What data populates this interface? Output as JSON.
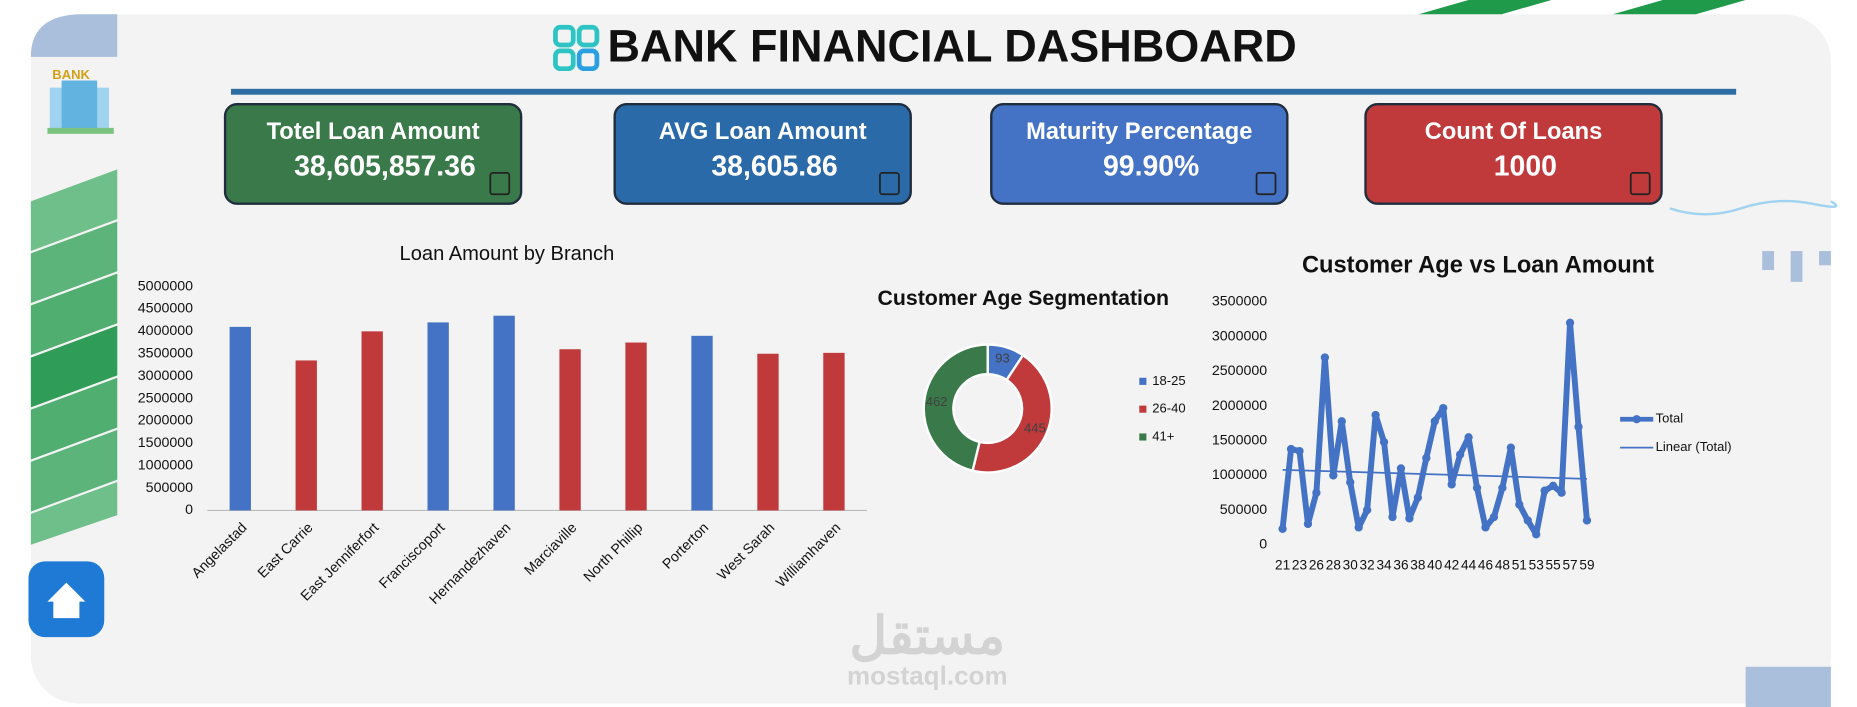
{
  "header": {
    "title": "BANK FINANCIAL DASHBOARD"
  },
  "sidebar": {
    "icon_label": "BANK"
  },
  "kpis": [
    {
      "title": "Totel Loan Amount",
      "value": "38,605,857.36",
      "color": "#3a7a4a"
    },
    {
      "title": "AVG Loan Amount",
      "value": "38,605.86",
      "color": "#2b6aa8"
    },
    {
      "title": "Maturity Percentage",
      "value": "99.90%",
      "color": "#4472c4"
    },
    {
      "title": "Count Of Loans",
      "value": "1000",
      "color": "#c0393b"
    }
  ],
  "watermark": {
    "arabic": "مستقل",
    "site": "mostaql.com"
  },
  "chart_data": [
    {
      "type": "bar",
      "title": "Loan Amount by Branch",
      "categories": [
        "Angelastad",
        "East Carrie",
        "East Jenniferfort",
        "Franciscoport",
        "Hernandezhaven",
        "Marciaville",
        "North Phillip",
        "Porterton",
        "West Sarah",
        "Williamhaven"
      ],
      "values": [
        4100000,
        3350000,
        4000000,
        4200000,
        4350000,
        3600000,
        3750000,
        3900000,
        3500000,
        3520000
      ],
      "colors": [
        "#4472c4",
        "#c0393b",
        "#c0393b",
        "#4472c4",
        "#4472c4",
        "#c0393b",
        "#c0393b",
        "#4472c4",
        "#c0393b",
        "#c0393b"
      ],
      "ylim": [
        0,
        5000000
      ],
      "yticks": [
        0,
        500000,
        1000000,
        1500000,
        2000000,
        2500000,
        3000000,
        3500000,
        4000000,
        4500000,
        5000000
      ]
    },
    {
      "type": "donut",
      "title": "Customer Age Segmentation",
      "categories": [
        "18-25",
        "26-40",
        "41+"
      ],
      "values": [
        93,
        445,
        462
      ],
      "colors": [
        "#4472c4",
        "#c0393b",
        "#3a7a4a"
      ],
      "legend": "right"
    },
    {
      "type": "line",
      "title": "Customer Age vs Loan Amount",
      "categories": [
        "21",
        null,
        "23",
        null,
        "26",
        null,
        "28",
        null,
        "30",
        null,
        "32",
        null,
        "34",
        null,
        "36",
        null,
        "38",
        null,
        "40",
        null,
        "42",
        null,
        "44",
        null,
        "46",
        null,
        "48",
        null,
        "51",
        null,
        "53",
        null,
        "55",
        null,
        "57",
        null,
        "59"
      ],
      "series": [
        {
          "name": "Total",
          "color": "#4472c4",
          "values": [
            230000,
            1380000,
            1350000,
            300000,
            750000,
            2700000,
            1000000,
            1780000,
            900000,
            250000,
            500000,
            1870000,
            1480000,
            400000,
            1100000,
            380000,
            680000,
            1250000,
            1780000,
            1970000,
            870000,
            1300000,
            1550000,
            820000,
            250000,
            400000,
            820000,
            1400000,
            580000,
            350000,
            150000,
            780000,
            850000,
            750000,
            3200000,
            1700000,
            350000
          ]
        }
      ],
      "trend": {
        "name": "Linear (Total)",
        "color": "#4472c4",
        "start": 1080000,
        "end": 950000
      },
      "ylim": [
        0,
        3500000
      ],
      "yticks": [
        0,
        500000,
        1000000,
        1500000,
        2000000,
        2500000,
        3000000,
        3500000
      ],
      "legend": "right"
    }
  ]
}
